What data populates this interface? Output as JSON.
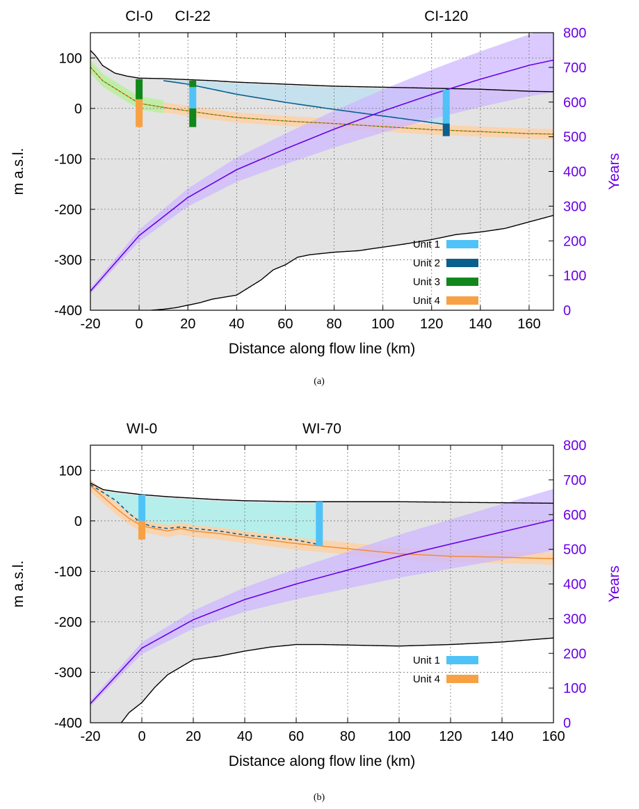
{
  "chart_data": [
    {
      "panel": "(a)",
      "type": "line",
      "xlabel": "Distance along flow line (km)",
      "ylabel": "m a.s.l.",
      "y2label": "Years",
      "xlim": [
        -20,
        170
      ],
      "ylim": [
        -400,
        150
      ],
      "y2lim": [
        0,
        800
      ],
      "xticks": [
        -20,
        0,
        20,
        40,
        60,
        80,
        100,
        120,
        140,
        160
      ],
      "yticks": [
        100,
        0,
        -100,
        -200,
        -300,
        -400
      ],
      "y2ticks": [
        800,
        700,
        600,
        500,
        400,
        300,
        200,
        100,
        0
      ],
      "grid": true,
      "sites": [
        {
          "label": "CI-0",
          "x": 0
        },
        {
          "label": "CI-22",
          "x": 22
        },
        {
          "label": "CI-120",
          "x": 126
        }
      ],
      "legend": [
        "Unit 1",
        "Unit 2",
        "Unit 3",
        "Unit 4"
      ],
      "legend_position": "bottom-right",
      "colors": {
        "unit1": "#4fc3f7",
        "unit2": "#0a5f8c",
        "unit3": "#11871b",
        "unit4": "#f7a144",
        "years": "#6a00e6",
        "ice": "#e3e3e3"
      },
      "series": [
        {
          "name": "surface",
          "x": [
            -20,
            -18,
            -15,
            -10,
            -5,
            0,
            10,
            20,
            30,
            40,
            50,
            60,
            70,
            80,
            90,
            100,
            110,
            120,
            130,
            140,
            150,
            160,
            170
          ],
          "values": [
            115,
            105,
            85,
            70,
            64,
            60,
            59,
            57,
            55,
            52,
            50,
            48,
            46,
            44,
            43,
            42,
            41,
            40,
            39,
            38,
            36,
            34,
            33
          ]
        },
        {
          "name": "bed",
          "x": [
            5,
            10,
            15,
            20,
            25,
            30,
            40,
            50,
            55,
            60,
            65,
            70,
            80,
            90,
            100,
            110,
            120,
            130,
            140,
            150,
            160,
            170
          ],
          "values": [
            -400,
            -398,
            -395,
            -390,
            -385,
            -378,
            -370,
            -340,
            -320,
            -310,
            -295,
            -290,
            -285,
            -282,
            -275,
            -268,
            -260,
            -250,
            -245,
            -238,
            -225,
            -212
          ]
        },
        {
          "name": "Unit 4",
          "x": [
            -20,
            -15,
            -10,
            -5,
            0,
            10,
            20,
            30,
            40,
            60,
            80,
            100,
            120,
            140,
            160,
            170
          ],
          "values": [
            82,
            55,
            40,
            25,
            10,
            2,
            -5,
            -12,
            -18,
            -25,
            -30,
            -36,
            -42,
            -46,
            -50,
            -51
          ]
        },
        {
          "name": "Unit 1/2 base",
          "x": [
            10,
            20,
            30,
            40,
            60,
            80,
            100,
            120,
            126
          ],
          "values": [
            55,
            48,
            38,
            28,
            12,
            -2,
            -15,
            -28,
            -32
          ]
        },
        {
          "name": "Years",
          "x": [
            -20,
            0,
            20,
            40,
            60,
            80,
            100,
            120,
            140,
            160,
            170
          ],
          "values": [
            55,
            215,
            325,
            405,
            465,
            522,
            574,
            622,
            666,
            706,
            721
          ]
        }
      ],
      "cores": [
        {
          "site": "CI-0",
          "x": 0,
          "intervals": [
            {
              "unit": "Unit 3",
              "top": 58,
              "bottom": 18
            },
            {
              "unit": "Unit 4",
              "top": 18,
              "bottom": -37
            }
          ]
        },
        {
          "site": "CI-22",
          "x": 22,
          "intervals": [
            {
              "unit": "Unit 3",
              "top": 55,
              "bottom": 42
            },
            {
              "unit": "Unit 1",
              "top": 42,
              "bottom": 0
            },
            {
              "unit": "Unit 3",
              "top": 0,
              "bottom": -37
            }
          ]
        },
        {
          "site": "CI-120",
          "x": 126,
          "intervals": [
            {
              "unit": "Unit 1",
              "top": 37,
              "bottom": -30
            },
            {
              "unit": "Unit 2",
              "top": -30,
              "bottom": -55
            }
          ]
        }
      ]
    },
    {
      "panel": "(b)",
      "type": "line",
      "xlabel": "Distance along flow line (km)",
      "ylabel": "m a.s.l.",
      "y2label": "Years",
      "xlim": [
        -20,
        160
      ],
      "ylim": [
        -400,
        150
      ],
      "y2lim": [
        0,
        800
      ],
      "xticks": [
        -20,
        0,
        20,
        40,
        60,
        80,
        100,
        120,
        140,
        160
      ],
      "yticks": [
        100,
        0,
        -100,
        -200,
        -300,
        -400
      ],
      "y2ticks": [
        800,
        700,
        600,
        500,
        400,
        300,
        200,
        100,
        0
      ],
      "grid": true,
      "sites": [
        {
          "label": "WI-0",
          "x": 0
        },
        {
          "label": "WI-70",
          "x": 70
        }
      ],
      "legend": [
        "Unit 1",
        "Unit 4"
      ],
      "legend_position": "bottom-right",
      "colors": {
        "unit1": "#4fc3f7",
        "unit4": "#f7a144",
        "years": "#6a00e6",
        "ice": "#e3e3e3"
      },
      "series": [
        {
          "name": "surface",
          "x": [
            -20,
            -15,
            -10,
            -5,
            0,
            10,
            20,
            30,
            40,
            50,
            60,
            70,
            80,
            100,
            120,
            140,
            160
          ],
          "values": [
            75,
            62,
            58,
            55,
            52,
            48,
            45,
            42,
            40,
            39,
            38,
            38,
            38,
            38,
            37,
            36,
            35
          ]
        },
        {
          "name": "bed",
          "x": [
            -8,
            -5,
            0,
            5,
            10,
            15,
            20,
            30,
            40,
            50,
            60,
            70,
            80,
            100,
            120,
            140,
            160
          ],
          "values": [
            -400,
            -380,
            -360,
            -330,
            -305,
            -290,
            -275,
            -268,
            -258,
            -250,
            -245,
            -245,
            -246,
            -248,
            -245,
            -240,
            -232
          ]
        },
        {
          "name": "Unit 4",
          "x": [
            -20,
            -10,
            -5,
            0,
            5,
            10,
            15,
            20,
            30,
            40,
            60,
            80,
            100,
            120,
            140,
            160
          ],
          "values": [
            70,
            25,
            5,
            -10,
            -15,
            -20,
            -15,
            -20,
            -25,
            -32,
            -45,
            -55,
            -65,
            -70,
            -72,
            -75
          ]
        },
        {
          "name": "Unit 1 base",
          "x": [
            -20,
            -10,
            -5,
            0,
            5,
            10,
            15,
            20,
            30,
            40,
            60,
            70
          ],
          "values": [
            72,
            40,
            15,
            -5,
            -12,
            -15,
            -12,
            -15,
            -20,
            -28,
            -38,
            -48
          ]
        },
        {
          "name": "Years",
          "x": [
            -20,
            0,
            20,
            40,
            60,
            80,
            100,
            120,
            140,
            160
          ],
          "values": [
            55,
            215,
            297,
            355,
            400,
            440,
            480,
            515,
            550,
            585
          ]
        }
      ],
      "cores": [
        {
          "site": "WI-0",
          "x": 0,
          "intervals": [
            {
              "unit": "Unit 1",
              "top": 52,
              "bottom": 0
            },
            {
              "unit": "Unit 4",
              "top": 0,
              "bottom": -37
            }
          ]
        },
        {
          "site": "WI-70",
          "x": 69,
          "intervals": [
            {
              "unit": "Unit 1",
              "top": 38,
              "bottom": -50
            }
          ]
        }
      ]
    }
  ],
  "captions": {
    "a": "(a)",
    "b": "(b)"
  }
}
